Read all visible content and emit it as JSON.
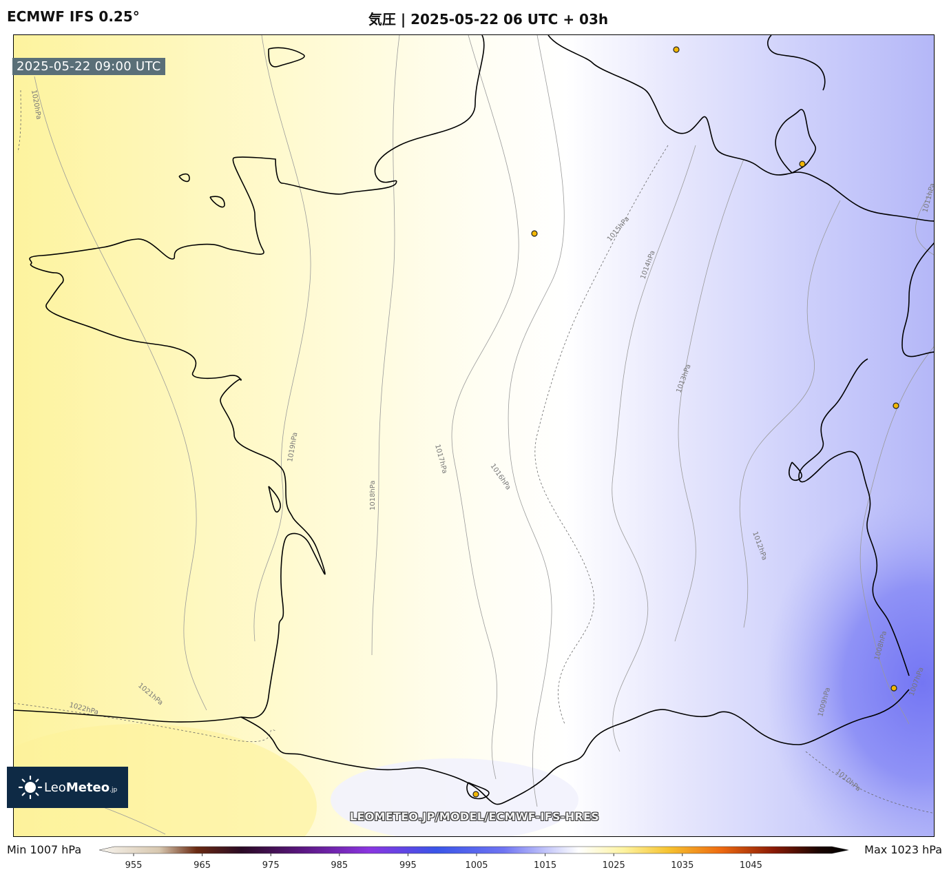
{
  "header": {
    "model": "ECMWF IFS 0.25°",
    "title": "気圧 | 2025-05-22 06 UTC + 03h"
  },
  "map": {
    "valid_time": "2025-05-22 09:00 UTC",
    "watermark": "LEOMETEO.JP/MODEL/ECMWF-IFS-HRES",
    "isobar_labels": [
      "1020hPa",
      "1019hPa",
      "1018hPa",
      "1017hPa",
      "1016hPa",
      "1015hPa",
      "1014hPa",
      "1013hPa",
      "1012hPa",
      "1011hPa",
      "1010hPa",
      "1009hPa",
      "1008hPa",
      "1007hPa",
      "1021hPa",
      "1022hPa"
    ],
    "colors": {
      "high": "#fdf6a8",
      "neutral": "#ffffff",
      "low": "#7b7ef5"
    }
  },
  "logo": {
    "brand_light": "Leo",
    "brand_bold": "Meteo",
    "suffix": ".jp"
  },
  "colorbar": {
    "min_label": "Min 1007 hPa",
    "max_label": "Max 1023 hPa",
    "ticks": [
      "955",
      "965",
      "975",
      "985",
      "995",
      "1005",
      "1015",
      "1025",
      "1035",
      "1045"
    ]
  }
}
